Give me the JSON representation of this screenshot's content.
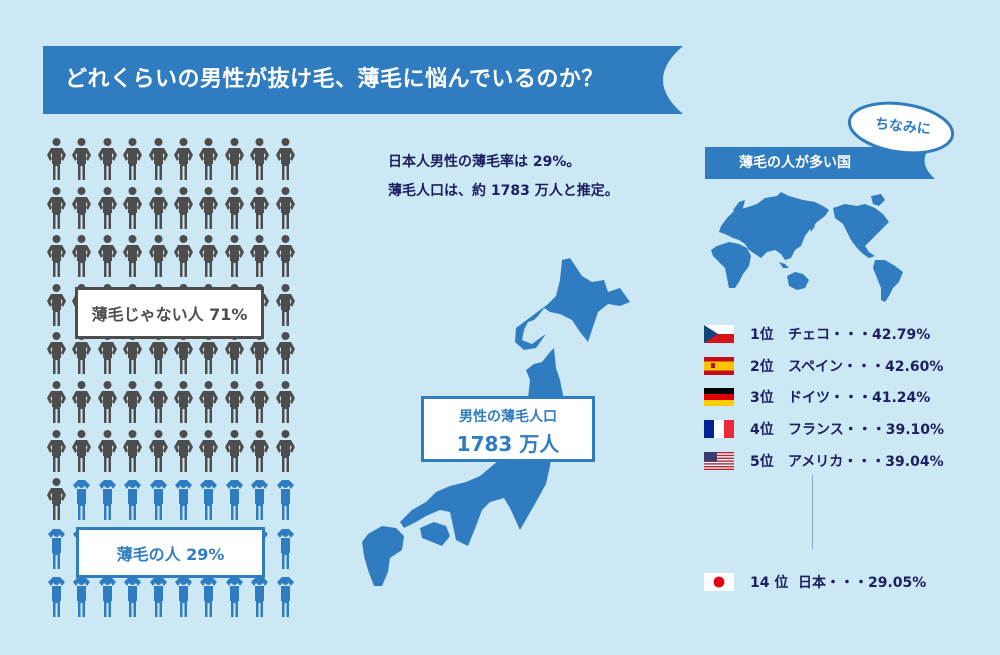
{
  "header": {
    "title": "どれくらいの男性が抜け毛、薄毛に悩んでいるのか？"
  },
  "pictogram": {
    "total_icons": 100,
    "columns": 10,
    "not_thinning_count": 71,
    "thinning_count": 29,
    "not_thinning_label": "薄毛じゃない人 71%",
    "thinning_label": "薄毛の人 29%",
    "colors": {
      "not_thinning": "#4d4d4d",
      "thinning": "#2f7cc1"
    }
  },
  "stats": {
    "line1": "日本人男性の薄毛率は 29%。",
    "line2": "薄毛人口は、約 1783 万人と推定。"
  },
  "japan": {
    "box_label": "男性の薄毛人口",
    "box_value": "1783 万人"
  },
  "ranking": {
    "bubble_label": "ちなみに",
    "heading": "薄毛の人が多い国",
    "items": [
      {
        "rank": "1位",
        "country": "チェコ",
        "value": "・・・42.79%",
        "flag": "czech-flag"
      },
      {
        "rank": "2位",
        "country": "スペイン",
        "value": "・・・42.60%",
        "flag": "spain-flag"
      },
      {
        "rank": "3位",
        "country": "ドイツ",
        "value": "・・・41.24%",
        "flag": "germany-flag"
      },
      {
        "rank": "4位",
        "country": "フランス",
        "value": "・・・39.10%",
        "flag": "france-flag"
      },
      {
        "rank": "5位",
        "country": "アメリカ",
        "value": "・・・39.04%",
        "flag": "usa-flag"
      }
    ],
    "japan": {
      "rank": "14 位",
      "country": "日本",
      "value": "・・・29.05%",
      "flag": "japan-flag"
    }
  },
  "colors": {
    "background": "#cde8f5",
    "accent_blue": "#2f7cc1",
    "dark_gray": "#4d4d4d",
    "navy_text": "#1a2060"
  },
  "chart_data": [
    {
      "type": "pictogram",
      "title": "どれくらいの男性が抜け毛、薄毛に悩んでいるのか？",
      "categories": [
        "薄毛じゃない人",
        "薄毛の人"
      ],
      "values": [
        71,
        29
      ],
      "unit": "%"
    },
    {
      "type": "table",
      "title": "薄毛の人が多い国",
      "categories": [
        "チェコ",
        "スペイン",
        "ドイツ",
        "フランス",
        "アメリカ",
        "日本"
      ],
      "ranks": [
        1,
        2,
        3,
        4,
        5,
        14
      ],
      "values": [
        42.79,
        42.6,
        41.24,
        39.1,
        39.04,
        29.05
      ],
      "unit": "%"
    },
    {
      "type": "annotation",
      "label": "男性の薄毛人口",
      "value": 1783,
      "unit": "万人",
      "rate_percent": 29
    }
  ]
}
